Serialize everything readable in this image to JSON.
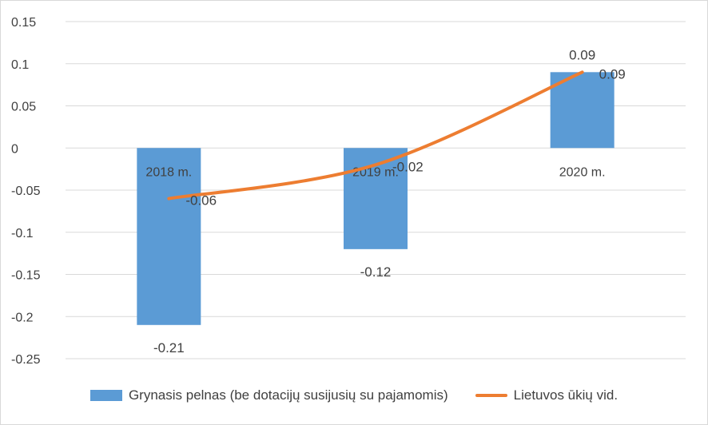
{
  "chart_data": {
    "type": "bar",
    "title": "",
    "xlabel": "",
    "ylabel": "",
    "categories": [
      "2018 m.",
      "2019 m.",
      "2020 m."
    ],
    "ylim": [
      -0.25,
      0.15
    ],
    "yticks": [
      0.15,
      0.1,
      0.05,
      0,
      -0.05,
      -0.1,
      -0.15,
      -0.2,
      -0.25
    ],
    "ytick_labels": [
      "0.15",
      "0.1",
      "0.05",
      "0",
      "-0.05",
      "-0.1",
      "-0.15",
      "-0.2",
      "-0.25"
    ],
    "grid": true,
    "legend_position": "bottom",
    "series": [
      {
        "name": "Grynasis pelnas (be dotacijų susijusių su pajamomis)",
        "type": "bar",
        "color": "#5b9bd5",
        "values": [
          -0.21,
          -0.12,
          0.09
        ],
        "labels": [
          "-0.21",
          "-0.12",
          "0.09"
        ]
      },
      {
        "name": "Lietuvos ūkių vid.",
        "type": "line",
        "color": "#ed7d31",
        "values": [
          -0.06,
          -0.02,
          0.09
        ],
        "labels": [
          "-0.06",
          "-0.02",
          "0.09"
        ]
      }
    ]
  }
}
